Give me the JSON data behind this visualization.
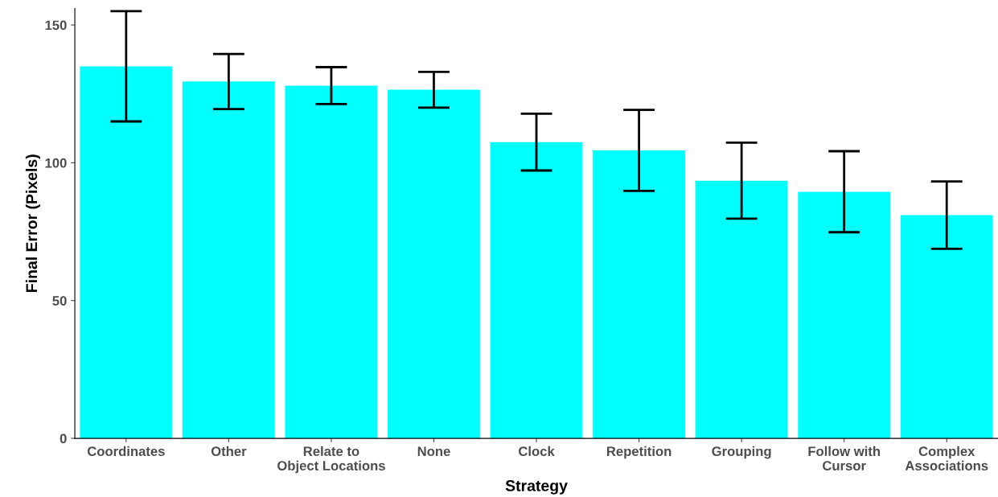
{
  "chart_data": {
    "type": "bar",
    "xlabel": "Strategy",
    "ylabel": "Final Error (Pixels)",
    "categories": [
      "Coordinates",
      "Other",
      "Relate to\nObject Locations",
      "None",
      "Clock",
      "Repetition",
      "Grouping",
      "Follow with\nCursor",
      "Complex\nAssociations"
    ],
    "values": [
      135,
      129.5,
      128,
      126.5,
      107.5,
      104.5,
      93.5,
      89.5,
      81
    ],
    "errors": [
      20,
      10,
      6.7,
      6.5,
      10.3,
      14.7,
      13.8,
      14.7,
      12.2
    ],
    "color": "#00ffff",
    "ylim": [
      0,
      156
    ],
    "yticks": [
      0,
      50,
      100,
      150
    ],
    "grid": false,
    "legend": false
  }
}
